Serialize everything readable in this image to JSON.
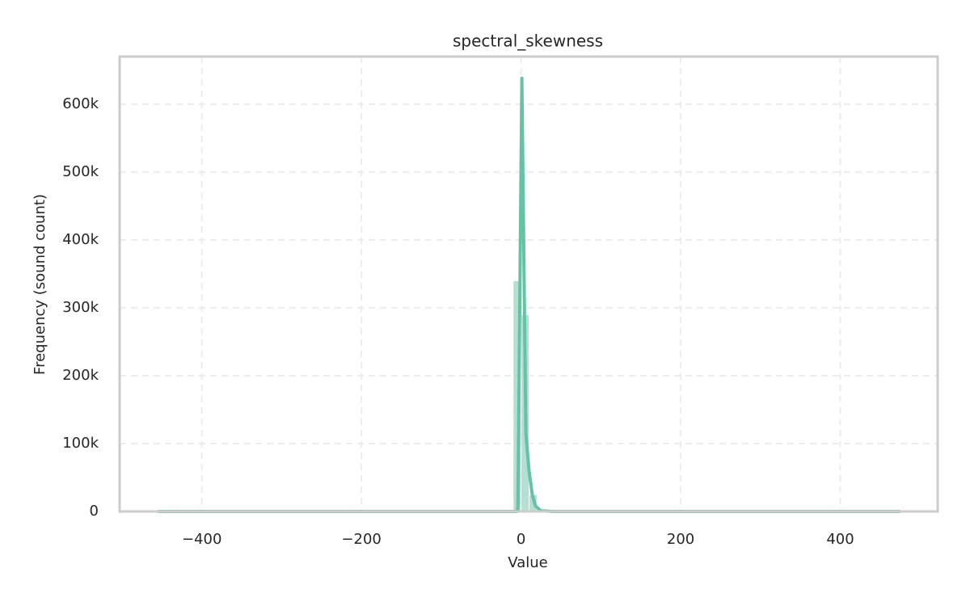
{
  "chart_data": {
    "type": "histogram",
    "title": "spectral_skewness",
    "xlabel": "Value",
    "ylabel": "Frequency (sound count)",
    "bins": [
      -460,
      -450,
      -440,
      -430,
      -420,
      -410,
      -400,
      -390,
      -380,
      -370,
      -360,
      -350,
      -340,
      -330,
      -320,
      -310,
      -300,
      -290,
      -280,
      -270,
      -260,
      -250,
      -240,
      -230,
      -220,
      -210,
      -200,
      -190,
      -180,
      -170,
      -160,
      -150,
      -140,
      -130,
      -120,
      -110,
      -100,
      -90,
      -80,
      -70,
      -60,
      -50,
      -40,
      -30,
      -20,
      -10,
      0,
      10,
      20,
      30,
      40,
      50,
      60,
      70,
      80,
      90,
      100,
      110,
      120,
      130,
      140,
      150,
      160,
      170,
      180,
      190,
      200,
      210,
      220,
      230,
      240,
      250,
      260,
      270,
      280,
      290,
      300,
      310,
      320,
      330,
      340,
      350,
      360,
      370,
      380,
      390,
      400,
      410,
      420,
      430,
      440,
      450,
      460,
      470,
      480
    ],
    "counts": [
      0,
      0,
      0,
      0,
      0,
      0,
      0,
      0,
      0,
      0,
      0,
      0,
      0,
      0,
      0,
      0,
      0,
      0,
      0,
      0,
      0,
      0,
      0,
      0,
      0,
      0,
      0,
      0,
      0,
      0,
      0,
      0,
      0,
      0,
      0,
      0,
      0,
      0,
      0,
      0,
      0,
      0,
      0,
      0,
      0,
      340000,
      290000,
      25000,
      3000,
      0,
      0,
      0,
      0,
      0,
      0,
      0,
      0,
      0,
      0,
      0,
      0,
      0,
      0,
      0,
      0,
      0,
      0,
      0,
      0,
      0,
      0,
      0,
      0,
      0,
      0,
      0,
      0,
      0,
      0,
      0,
      0,
      0,
      0,
      0,
      0,
      0,
      0,
      0,
      0,
      0,
      0,
      0,
      0,
      0
    ],
    "color": "#66c2a5",
    "kde": {
      "x": [
        -455,
        -5,
        -4,
        1,
        6,
        10,
        14,
        18,
        25,
        40,
        475
      ],
      "y": [
        0,
        0,
        5000,
        638000,
        115000,
        60000,
        25000,
        8000,
        1000,
        0,
        0
      ]
    },
    "xlim": [
      -503,
      522
    ],
    "ylim": [
      0,
      670000
    ],
    "xticks": [
      {
        "value": -400,
        "label": "−400"
      },
      {
        "value": -200,
        "label": "−200"
      },
      0,
      200,
      400
    ],
    "yticks": [
      0,
      {
        "value": 100000,
        "label": "100k"
      },
      {
        "value": 200000,
        "label": "200k"
      },
      {
        "value": 300000,
        "label": "300k"
      },
      {
        "value": 400000,
        "label": "400k"
      },
      {
        "value": 500000,
        "label": "500k"
      },
      {
        "value": 600000,
        "label": "600k"
      }
    ],
    "grid": true
  }
}
